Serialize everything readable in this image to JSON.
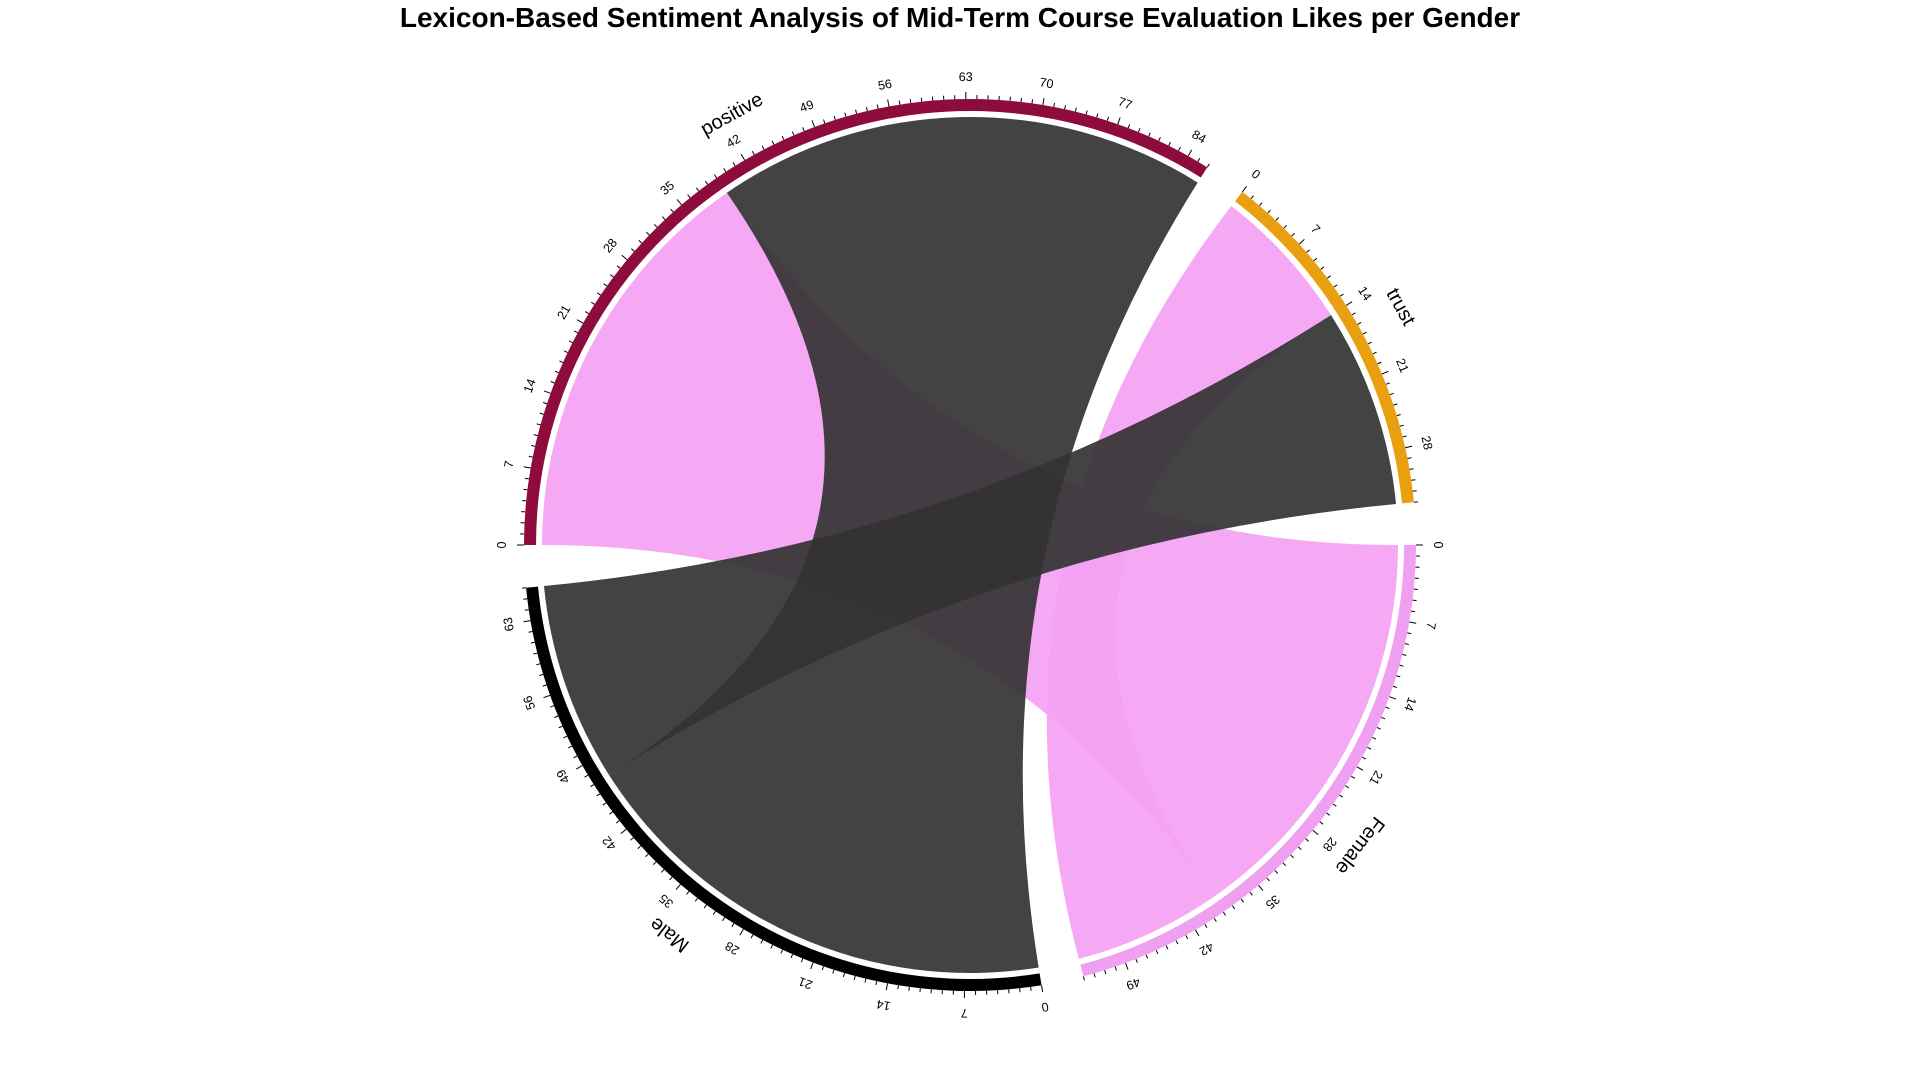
{
  "chart_data": {
    "type": "chord",
    "title": "Lexicon-Based Sentiment Analysis of Mid-Term Course Evaluation Likes per Gender",
    "sectors": [
      {
        "name": "positive",
        "total": 86,
        "color": "#8E0B3E",
        "ticks": [
          0,
          7,
          14,
          21,
          28,
          35,
          42,
          49,
          56,
          63,
          70,
          77,
          84
        ]
      },
      {
        "name": "trust",
        "total": 33,
        "color": "#E8A010",
        "ticks": [
          0,
          7,
          14,
          21,
          28
        ]
      },
      {
        "name": "Female",
        "total": 53,
        "color": "#F0A0F0",
        "ticks": [
          0,
          7,
          14,
          21,
          28,
          35,
          42,
          49
        ]
      },
      {
        "name": "Male",
        "total": 66,
        "color": "#000000",
        "ticks": [
          0,
          7,
          14,
          21,
          28,
          35,
          42,
          49,
          56,
          63
        ]
      }
    ],
    "links": [
      {
        "from": "Female",
        "to": "positive",
        "value": 39,
        "color": "#F4A2F4"
      },
      {
        "from": "Female",
        "to": "trust",
        "value": 14,
        "color": "#F4A2F4"
      },
      {
        "from": "Male",
        "to": "positive",
        "value": 47,
        "color": "#333333"
      },
      {
        "from": "Male",
        "to": "trust",
        "value": 19,
        "color": "#333333"
      }
    ]
  }
}
